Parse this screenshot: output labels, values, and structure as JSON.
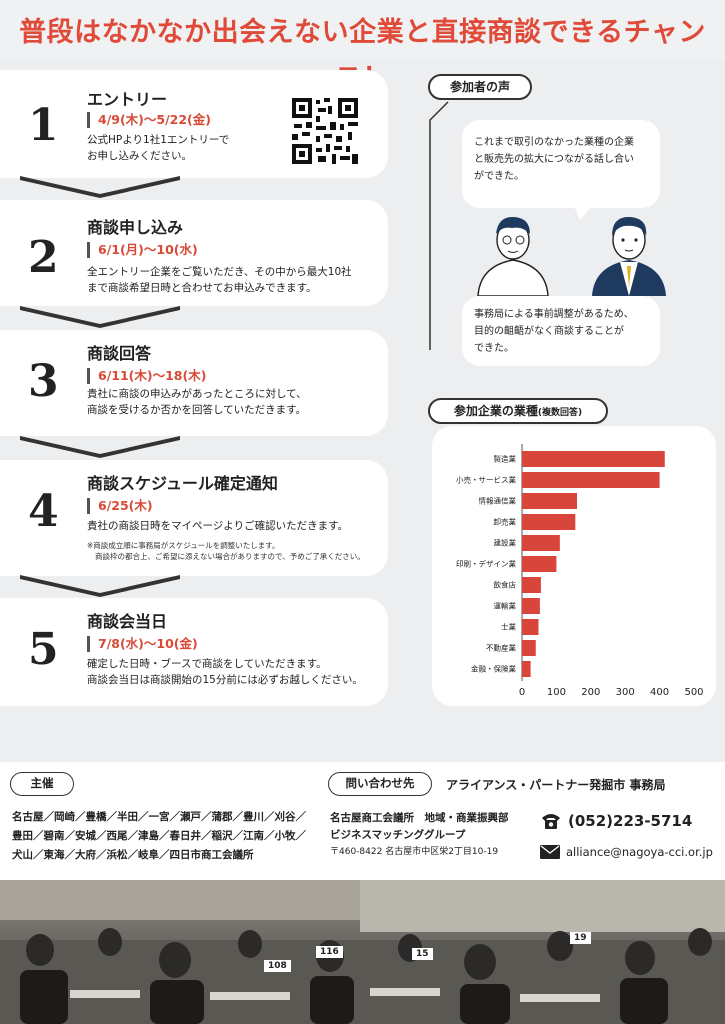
{
  "headline": "普段はなかなか出会えない企業と直接商談できるチャンス！",
  "steps": [
    {
      "num": "1",
      "title": "エントリー",
      "date": "4/9(木)～5/22(金)",
      "desc": [
        "公式HPより1社1エントリーで",
        "お申し込みください。"
      ]
    },
    {
      "num": "2",
      "title": "商談申し込み",
      "date": "6/1(月)～10(水)",
      "desc": [
        "全エントリー企業をご覧いただき、その中から最大10社",
        "まで商談希望日時と合わせてお申込みできます。"
      ]
    },
    {
      "num": "3",
      "title": "商談回答",
      "date": "6/11(木)～18(木)",
      "desc": [
        "貴社に商談の申込みがあったところに対して、",
        "商談を受けるか否かを回答していただきます。"
      ]
    },
    {
      "num": "4",
      "title": "商談スケジュール確定通知",
      "date": "6/25(木)",
      "desc": [
        "貴社の商談日時をマイページよりご確認いただきます。"
      ],
      "note": [
        "※商談成立順に事務局がスケジュールを調整いたします。",
        "商談枠の都合上、ご希望に添えない場合がありますので、予めご了承ください。"
      ]
    },
    {
      "num": "5",
      "title": "商談会当日",
      "date": "7/8(水)～10(金)",
      "desc": [
        "確定した日時・ブースで商談をしていただきます。",
        "商談会当日は商談開始の15分前には必ずお越しください。"
      ]
    }
  ],
  "voices": {
    "heading": "参加者の声",
    "bubble1": [
      "これまで取引のなかった業種の企業",
      "と販売先の拡大につながる話し合い",
      "ができた。"
    ],
    "bubble2": [
      "事務局による事前調整があるため、",
      "目的の齟齬がなく商談することが",
      "できた。"
    ]
  },
  "industry": {
    "heading": "参加企業の業種",
    "heading_note": "(複数回答)"
  },
  "chart_data": {
    "type": "bar",
    "orientation": "horizontal",
    "categories": [
      "製造業",
      "小売・サービス業",
      "情報通信業",
      "卸売業",
      "建設業",
      "印刷・デザイン業",
      "飲食店",
      "運輸業",
      "士業",
      "不動産業",
      "金融・保険業"
    ],
    "values": [
      415,
      400,
      160,
      155,
      110,
      100,
      55,
      52,
      48,
      40,
      25
    ],
    "xlim": [
      0,
      500
    ],
    "xticks": [
      "0",
      "100",
      "200",
      "300",
      "400",
      "500"
    ],
    "color": "#d8453a"
  },
  "footer": {
    "host_label": "主催",
    "hosts": [
      "名古屋／岡崎／豊橋／半田／一宮／瀬戸／蒲郡／豊川／刈谷／",
      "豊田／碧南／安城／西尾／津島／春日井／稲沢／江南／小牧／",
      "犬山／東海／大府／浜松／岐阜／四日市商工会議所"
    ],
    "contact_label": "問い合わせ先",
    "office": "アライアンス・パートナー発掘市 事務局",
    "org": [
      "名古屋商工会議所　地域・商業振興部",
      "ビジネスマッチンググループ",
      "〒460-8422 名古屋市中区栄2丁目10-19"
    ],
    "phone": "(052)223-5714",
    "email": "alliance@nagoya-cci.or.jp"
  },
  "photo": {
    "table_numbers": [
      "108",
      "116",
      "15",
      "19"
    ]
  },
  "colors": {
    "accent": "#e04a38",
    "bar": "#d8453a"
  }
}
